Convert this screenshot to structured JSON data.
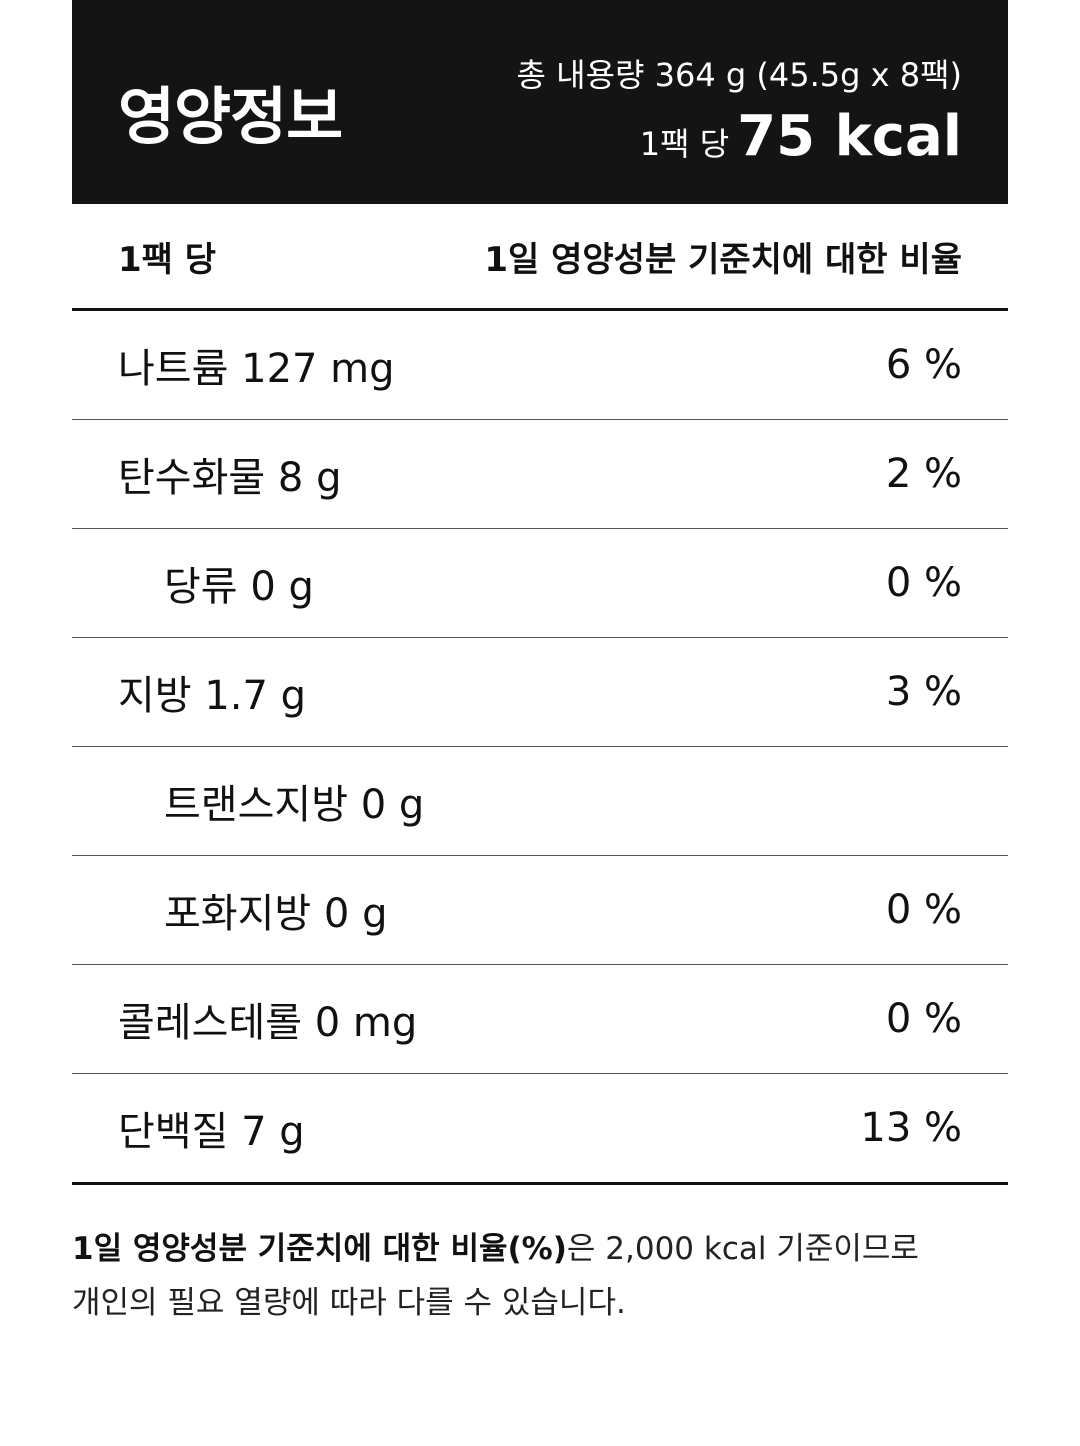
{
  "header": {
    "title": "영양정보",
    "total_content": "총 내용량 364 g (45.5g x 8팩)",
    "per_pack_label": "1팩 당",
    "calories": "75 kcal"
  },
  "columns": {
    "left": "1팩 당",
    "right": "1일 영양성분 기준치에 대한 비율"
  },
  "rows": [
    {
      "name": "나트륨 127 mg",
      "percent": "6 %",
      "indent": false
    },
    {
      "name": "탄수화물 8 g",
      "percent": "2 %",
      "indent": false
    },
    {
      "name": "당류 0 g",
      "percent": "0 %",
      "indent": true
    },
    {
      "name": "지방 1.7 g",
      "percent": "3 %",
      "indent": false
    },
    {
      "name": "트랜스지방 0 g",
      "percent": "",
      "indent": true
    },
    {
      "name": "포화지방 0 g",
      "percent": "0 %",
      "indent": true
    },
    {
      "name": "콜레스테롤 0 mg",
      "percent": "0 %",
      "indent": false
    },
    {
      "name": "단백질 7 g",
      "percent": "13 %",
      "indent": false
    }
  ],
  "footnote": {
    "bold": "1일 영양성분 기준치에 대한 비율(%)",
    "line1_rest": "은 2,000 kcal 기준이므로",
    "line2": "개인의 필요 열량에 따라 다를 수 있습니다."
  }
}
